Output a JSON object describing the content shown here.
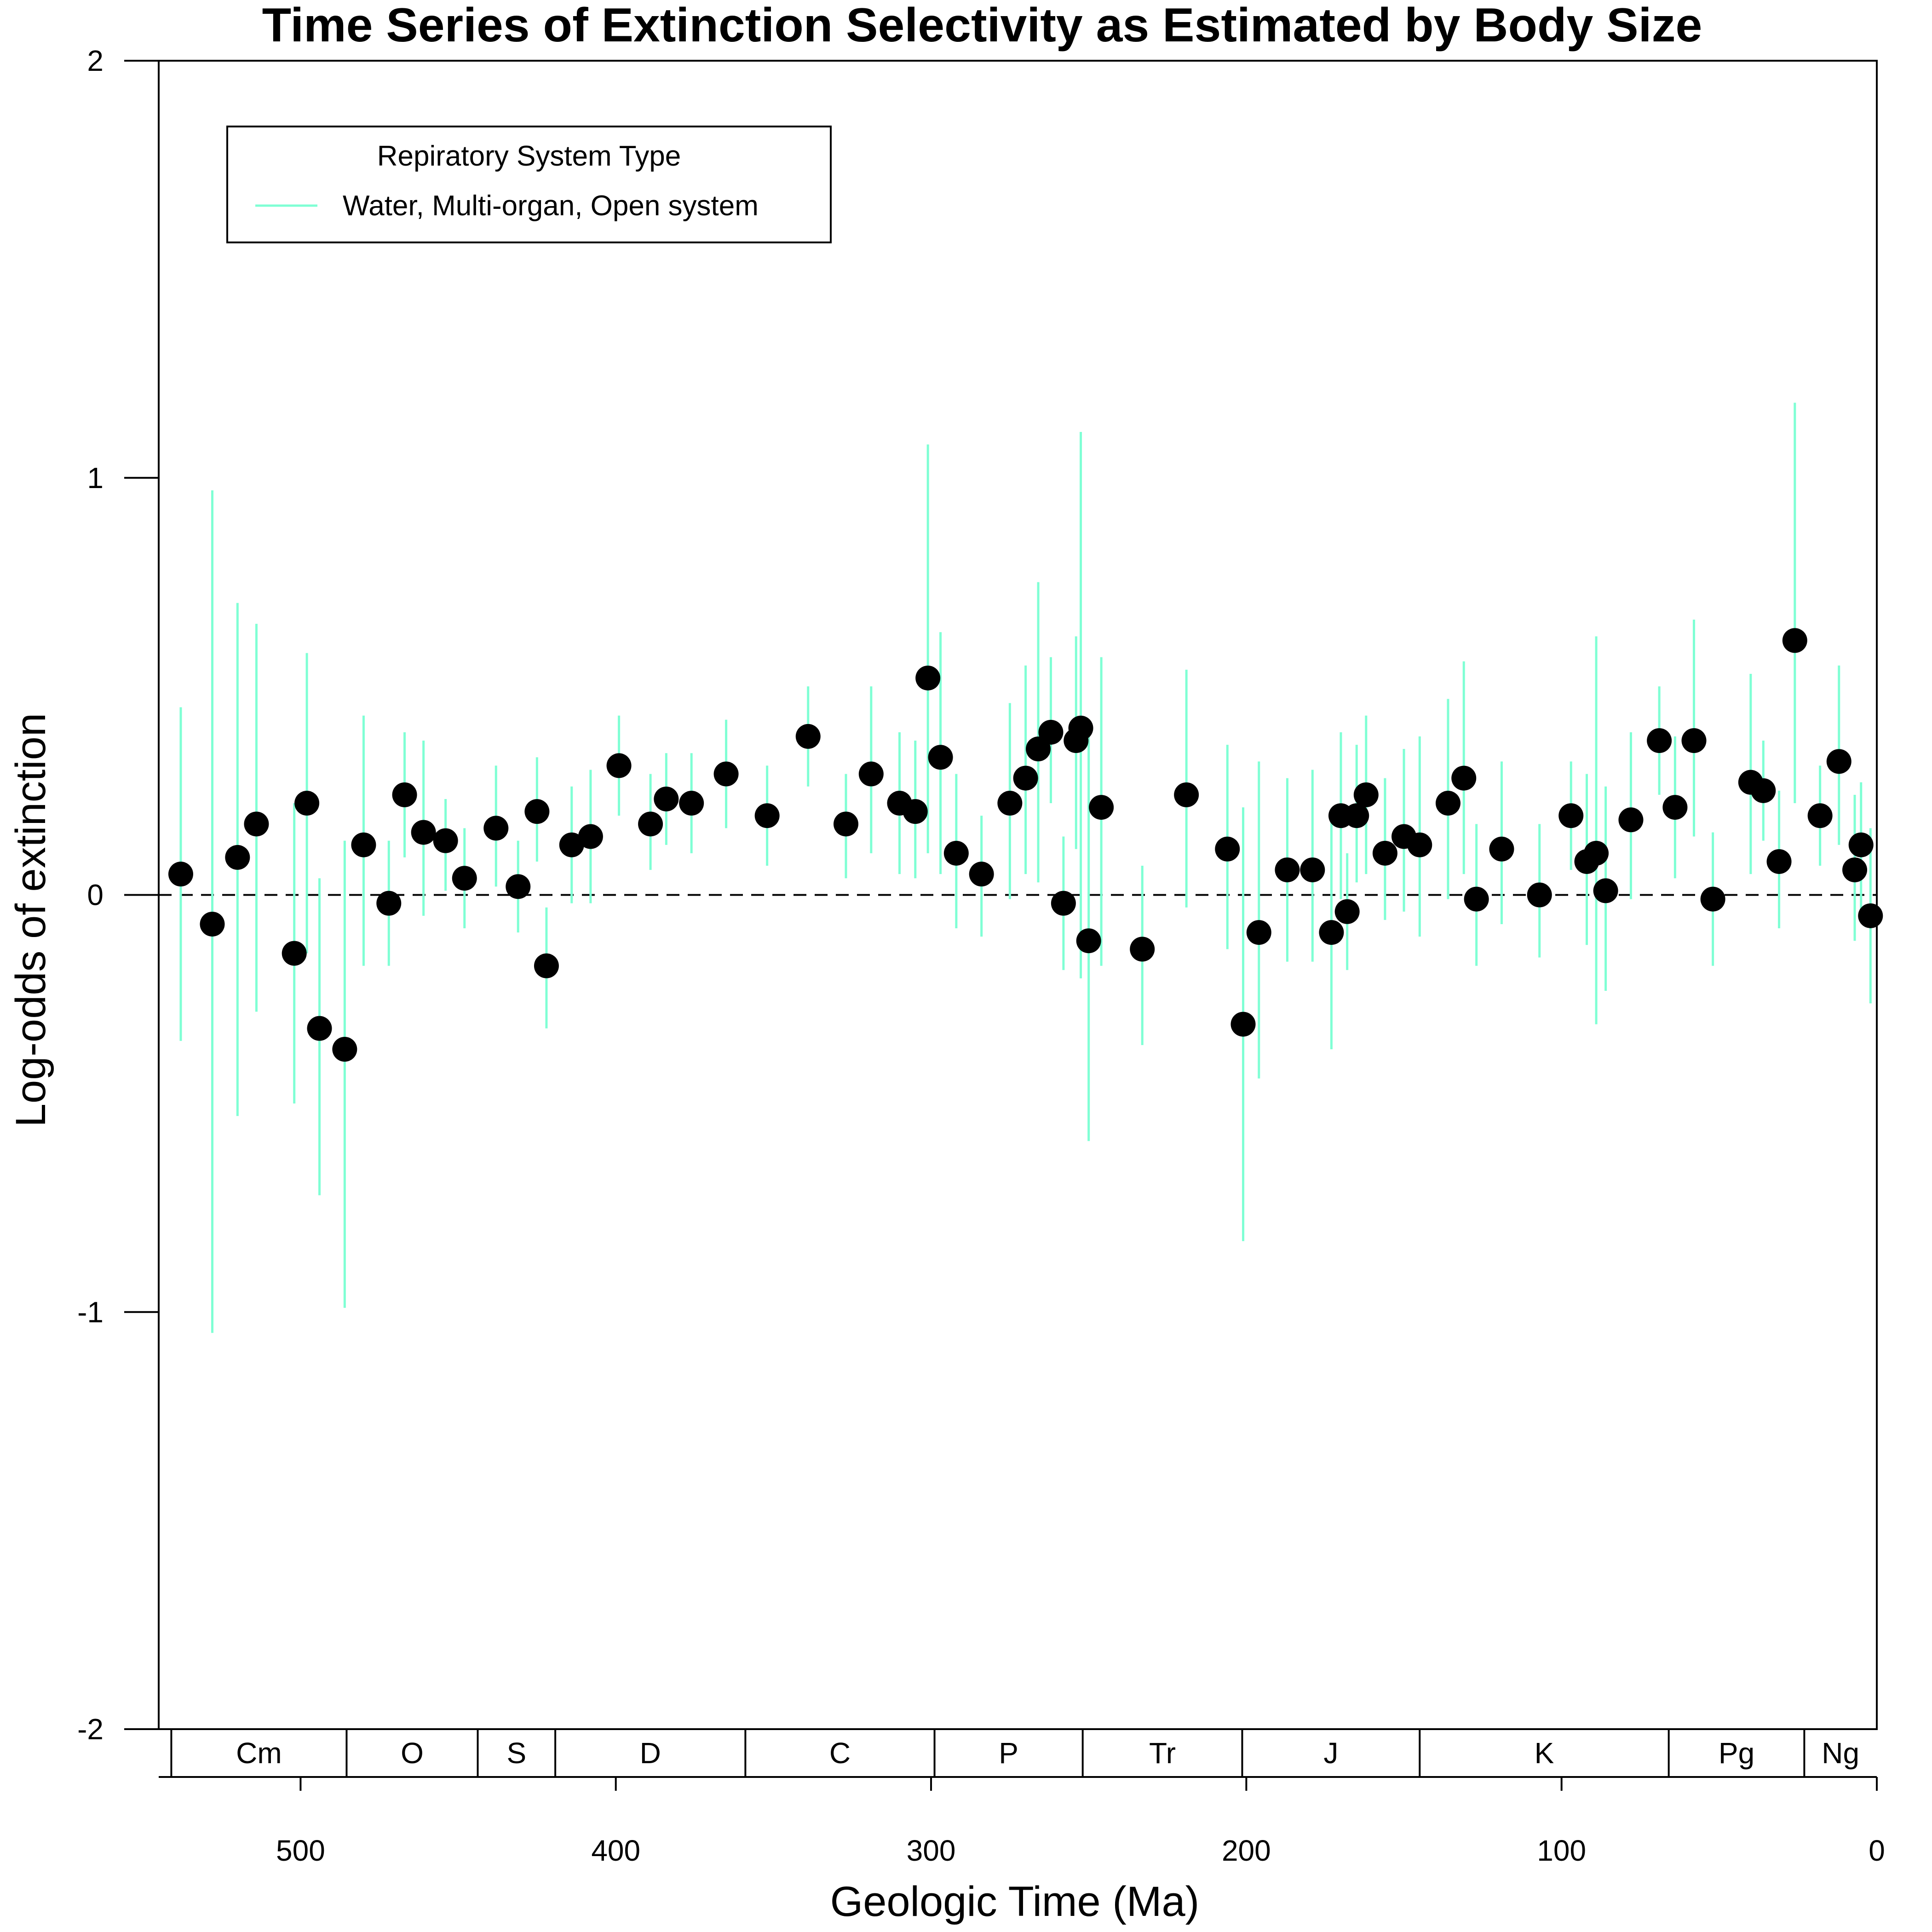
{
  "chart_data": {
    "type": "scatter",
    "title": "Time Series of Extinction Selectivity as Estimated by Body Size",
    "xlabel": "Geologic Time (Ma)",
    "ylabel": "Log-odds of extinction",
    "xlim": [
      545,
      0
    ],
    "ylim": [
      -2,
      2
    ],
    "x_ticks": [
      500,
      400,
      300,
      200,
      100,
      0
    ],
    "y_ticks": [
      -2,
      -1,
      0,
      1,
      2
    ],
    "reference_line": 0,
    "colors": {
      "errorbar": "#7FFFD4",
      "point": "#000000"
    },
    "legend": {
      "title": "Repiratory System Type",
      "entries": [
        "Water, Multi-organ, Open system"
      ],
      "placement": "top-left"
    },
    "periods": [
      {
        "label": "Cm",
        "start": 541,
        "end": 485.4
      },
      {
        "label": "O",
        "start": 485.4,
        "end": 443.8
      },
      {
        "label": "S",
        "start": 443.8,
        "end": 419.2
      },
      {
        "label": "D",
        "start": 419.2,
        "end": 358.9
      },
      {
        "label": "C",
        "start": 358.9,
        "end": 298.9
      },
      {
        "label": "P",
        "start": 298.9,
        "end": 251.9
      },
      {
        "label": "Tr",
        "start": 251.9,
        "end": 201.3
      },
      {
        "label": "J",
        "start": 201.3,
        "end": 145
      },
      {
        "label": "K",
        "start": 145,
        "end": 66
      },
      {
        "label": "Pg",
        "start": 66,
        "end": 23
      },
      {
        "label": "Ng",
        "start": 23,
        "end": 0
      }
    ],
    "series": [
      {
        "name": "Water, Multi-organ, Open system",
        "points": [
          {
            "x": 538,
            "y": 0.05,
            "lo": -0.35,
            "hi": 0.45
          },
          {
            "x": 528,
            "y": -0.07,
            "lo": -1.05,
            "hi": 0.97
          },
          {
            "x": 520,
            "y": 0.09,
            "lo": -0.53,
            "hi": 0.7
          },
          {
            "x": 514,
            "y": 0.17,
            "lo": -0.28,
            "hi": 0.65
          },
          {
            "x": 502,
            "y": -0.14,
            "lo": -0.5,
            "hi": 0.22
          },
          {
            "x": 498,
            "y": 0.22,
            "lo": -0.14,
            "hi": 0.58
          },
          {
            "x": 494,
            "y": -0.32,
            "lo": -0.72,
            "hi": 0.04
          },
          {
            "x": 486,
            "y": -0.37,
            "lo": -0.99,
            "hi": 0.13
          },
          {
            "x": 480,
            "y": 0.12,
            "lo": -0.17,
            "hi": 0.43
          },
          {
            "x": 472,
            "y": -0.02,
            "lo": -0.17,
            "hi": 0.13
          },
          {
            "x": 467,
            "y": 0.24,
            "lo": 0.09,
            "hi": 0.39
          },
          {
            "x": 461,
            "y": 0.15,
            "lo": -0.05,
            "hi": 0.37
          },
          {
            "x": 454,
            "y": 0.13,
            "lo": 0.01,
            "hi": 0.23
          },
          {
            "x": 448,
            "y": 0.04,
            "lo": -0.08,
            "hi": 0.16
          },
          {
            "x": 438,
            "y": 0.16,
            "lo": 0.02,
            "hi": 0.31
          },
          {
            "x": 431,
            "y": 0.02,
            "lo": -0.09,
            "hi": 0.13
          },
          {
            "x": 425,
            "y": 0.2,
            "lo": 0.08,
            "hi": 0.33
          },
          {
            "x": 422,
            "y": -0.17,
            "lo": -0.32,
            "hi": -0.03
          },
          {
            "x": 414,
            "y": 0.12,
            "lo": -0.02,
            "hi": 0.26
          },
          {
            "x": 408,
            "y": 0.14,
            "lo": -0.02,
            "hi": 0.3
          },
          {
            "x": 399,
            "y": 0.31,
            "lo": 0.19,
            "hi": 0.43
          },
          {
            "x": 389,
            "y": 0.17,
            "lo": 0.06,
            "hi": 0.29
          },
          {
            "x": 384,
            "y": 0.23,
            "lo": 0.12,
            "hi": 0.34
          },
          {
            "x": 376,
            "y": 0.22,
            "lo": 0.1,
            "hi": 0.34
          },
          {
            "x": 365,
            "y": 0.29,
            "lo": 0.16,
            "hi": 0.42
          },
          {
            "x": 352,
            "y": 0.19,
            "lo": 0.07,
            "hi": 0.31
          },
          {
            "x": 339,
            "y": 0.38,
            "lo": 0.26,
            "hi": 0.5
          },
          {
            "x": 327,
            "y": 0.17,
            "lo": 0.04,
            "hi": 0.29
          },
          {
            "x": 319,
            "y": 0.29,
            "lo": 0.1,
            "hi": 0.5
          },
          {
            "x": 310,
            "y": 0.22,
            "lo": 0.05,
            "hi": 0.39
          },
          {
            "x": 305,
            "y": 0.2,
            "lo": 0.04,
            "hi": 0.37
          },
          {
            "x": 301,
            "y": 0.52,
            "lo": 0.1,
            "hi": 1.08
          },
          {
            "x": 297,
            "y": 0.33,
            "lo": 0.05,
            "hi": 0.63
          },
          {
            "x": 292,
            "y": 0.1,
            "lo": -0.08,
            "hi": 0.29
          },
          {
            "x": 284,
            "y": 0.05,
            "lo": -0.1,
            "hi": 0.19
          },
          {
            "x": 275,
            "y": 0.22,
            "lo": -0.01,
            "hi": 0.46
          },
          {
            "x": 270,
            "y": 0.28,
            "lo": 0.05,
            "hi": 0.55
          },
          {
            "x": 266,
            "y": 0.35,
            "lo": 0.03,
            "hi": 0.75
          },
          {
            "x": 262,
            "y": 0.39,
            "lo": 0.22,
            "hi": 0.57
          },
          {
            "x": 258,
            "y": -0.02,
            "lo": -0.18,
            "hi": 0.14
          },
          {
            "x": 254,
            "y": 0.37,
            "lo": 0.11,
            "hi": 0.62
          },
          {
            "x": 252.5,
            "y": 0.4,
            "lo": -0.2,
            "hi": 1.11
          },
          {
            "x": 250,
            "y": -0.11,
            "lo": -0.59,
            "hi": 0.38
          },
          {
            "x": 246,
            "y": 0.21,
            "lo": -0.17,
            "hi": 0.57
          },
          {
            "x": 233,
            "y": -0.13,
            "lo": -0.36,
            "hi": 0.07
          },
          {
            "x": 219,
            "y": 0.24,
            "lo": -0.03,
            "hi": 0.54
          },
          {
            "x": 206,
            "y": 0.11,
            "lo": -0.13,
            "hi": 0.36
          },
          {
            "x": 201,
            "y": -0.31,
            "lo": -0.83,
            "hi": 0.21
          },
          {
            "x": 196,
            "y": -0.09,
            "lo": -0.44,
            "hi": 0.32
          },
          {
            "x": 187,
            "y": 0.06,
            "lo": -0.16,
            "hi": 0.28
          },
          {
            "x": 179,
            "y": 0.06,
            "lo": -0.16,
            "hi": 0.3
          },
          {
            "x": 173,
            "y": -0.09,
            "lo": -0.37,
            "hi": 0.19
          },
          {
            "x": 170,
            "y": 0.19,
            "lo": -0.01,
            "hi": 0.39
          },
          {
            "x": 168,
            "y": -0.04,
            "lo": -0.18,
            "hi": 0.1
          },
          {
            "x": 165,
            "y": 0.19,
            "lo": 0.03,
            "hi": 0.36
          },
          {
            "x": 162,
            "y": 0.24,
            "lo": 0.05,
            "hi": 0.43
          },
          {
            "x": 156,
            "y": 0.1,
            "lo": -0.06,
            "hi": 0.28
          },
          {
            "x": 150,
            "y": 0.14,
            "lo": -0.04,
            "hi": 0.35
          },
          {
            "x": 145,
            "y": 0.12,
            "lo": -0.1,
            "hi": 0.38
          },
          {
            "x": 136,
            "y": 0.22,
            "lo": -0.01,
            "hi": 0.47
          },
          {
            "x": 131,
            "y": 0.28,
            "lo": 0.05,
            "hi": 0.56
          },
          {
            "x": 127,
            "y": -0.01,
            "lo": -0.17,
            "hi": 0.17
          },
          {
            "x": 119,
            "y": 0.11,
            "lo": -0.07,
            "hi": 0.32
          },
          {
            "x": 107,
            "y": 0.0,
            "lo": -0.15,
            "hi": 0.17
          },
          {
            "x": 97,
            "y": 0.19,
            "lo": 0.06,
            "hi": 0.32
          },
          {
            "x": 92,
            "y": 0.08,
            "lo": -0.12,
            "hi": 0.29
          },
          {
            "x": 89,
            "y": 0.1,
            "lo": -0.31,
            "hi": 0.62
          },
          {
            "x": 86,
            "y": 0.01,
            "lo": -0.23,
            "hi": 0.26
          },
          {
            "x": 78,
            "y": 0.18,
            "lo": -0.01,
            "hi": 0.39
          },
          {
            "x": 69,
            "y": 0.37,
            "lo": 0.24,
            "hi": 0.5
          },
          {
            "x": 64,
            "y": 0.21,
            "lo": 0.04,
            "hi": 0.38
          },
          {
            "x": 58,
            "y": 0.37,
            "lo": 0.14,
            "hi": 0.66
          },
          {
            "x": 52,
            "y": -0.01,
            "lo": -0.17,
            "hi": 0.15
          },
          {
            "x": 40,
            "y": 0.27,
            "lo": 0.05,
            "hi": 0.53
          },
          {
            "x": 36,
            "y": 0.25,
            "lo": 0.13,
            "hi": 0.37
          },
          {
            "x": 31,
            "y": 0.08,
            "lo": -0.08,
            "hi": 0.25
          },
          {
            "x": 26,
            "y": 0.61,
            "lo": 0.22,
            "hi": 1.18
          },
          {
            "x": 18,
            "y": 0.19,
            "lo": 0.07,
            "hi": 0.31
          },
          {
            "x": 12,
            "y": 0.32,
            "lo": 0.12,
            "hi": 0.55
          },
          {
            "x": 7,
            "y": 0.06,
            "lo": -0.11,
            "hi": 0.24
          },
          {
            "x": 5,
            "y": 0.12,
            "lo": -0.04,
            "hi": 0.27
          },
          {
            "x": 2,
            "y": -0.05,
            "lo": -0.26,
            "hi": 0.16
          }
        ]
      }
    ]
  }
}
